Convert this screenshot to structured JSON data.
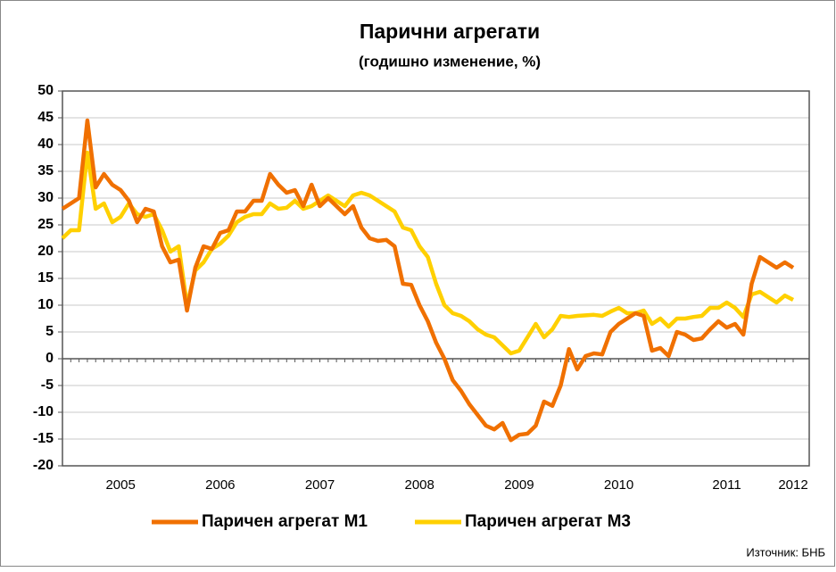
{
  "chart_data": {
    "type": "line",
    "title": "Парични агрегати",
    "subtitle": "(годишно изменение, %)",
    "source": "Източник: БНБ",
    "categories": [
      null,
      null,
      null,
      null,
      null,
      null,
      null,
      "2005",
      null,
      null,
      null,
      null,
      null,
      null,
      null,
      null,
      null,
      null,
      null,
      "2006",
      null,
      null,
      null,
      null,
      null,
      null,
      null,
      null,
      null,
      null,
      null,
      "2007",
      null,
      null,
      null,
      null,
      null,
      null,
      null,
      null,
      null,
      null,
      null,
      "2008",
      null,
      null,
      null,
      null,
      null,
      null,
      null,
      null,
      null,
      null,
      null,
      "2009",
      null,
      null,
      null,
      null,
      null,
      null,
      null,
      null,
      null,
      null,
      null,
      "2010",
      null,
      null,
      null,
      null,
      null,
      null,
      null,
      null,
      null,
      null,
      null,
      null,
      "2011",
      null,
      null,
      null,
      null,
      null,
      null,
      null,
      "2012"
    ],
    "series": [
      {
        "name": "Паричен агрегат М1",
        "color": "#f07000",
        "values": [
          28,
          29,
          30,
          44.5,
          32,
          34.5,
          32.5,
          31.5,
          29.5,
          25.5,
          28,
          27.5,
          21,
          18,
          18.5,
          9,
          17,
          21,
          20.5,
          23.5,
          24,
          27.5,
          27.5,
          29.5,
          29.5,
          34.5,
          32.5,
          31,
          31.5,
          28.5,
          32.5,
          28.5,
          30,
          28.5,
          27,
          28.5,
          24.5,
          22.5,
          22,
          22.2,
          21,
          14,
          13.8,
          10,
          7,
          3,
          0,
          -4,
          -6,
          -8.5,
          -10.5,
          -12.5,
          -13.2,
          -12,
          -15.2,
          -14.2,
          -14,
          -12.5,
          -8,
          -8.8,
          -5,
          1.8,
          -2,
          0.5,
          1,
          0.8,
          5,
          6.5,
          7.5,
          8.5,
          8,
          1.5,
          2,
          0.5,
          5,
          4.5,
          3.5,
          3.8,
          5.5,
          7,
          5.8,
          6.5,
          4.5,
          14,
          19,
          18,
          17,
          18,
          17
        ]
      },
      {
        "name": "Паричен агрегат М3",
        "color": "#ffd000",
        "values": [
          22.5,
          24,
          24,
          38.5,
          28,
          29,
          25.5,
          26.5,
          29,
          27,
          26.5,
          27,
          24,
          20,
          21,
          10,
          16.5,
          18,
          20.5,
          21.5,
          23,
          25.5,
          26.5,
          27,
          27,
          29,
          28,
          28.2,
          29.5,
          28,
          28.5,
          29.5,
          30.5,
          29.5,
          28.5,
          30.5,
          31,
          30.5,
          29.5,
          28.5,
          27.5,
          24.5,
          24,
          21,
          19,
          14,
          10,
          8.5,
          8,
          7,
          5.5,
          4.5,
          4,
          2.5,
          1,
          1.5,
          4,
          6.5,
          4,
          5.5,
          8,
          7.8,
          8,
          8.1,
          8.2,
          8,
          8.8,
          9.5,
          8.5,
          8.5,
          9,
          6.5,
          7.5,
          6,
          7.5,
          7.5,
          7.8,
          8,
          9.5,
          9.5,
          10.5,
          9.5,
          7.8,
          12,
          12.5,
          11.5,
          10.5,
          11.8,
          11
        ]
      }
    ],
    "ylim": [
      -20,
      50
    ],
    "yticks": [
      -20,
      -15,
      -10,
      -5,
      0,
      5,
      10,
      15,
      20,
      25,
      30,
      35,
      40,
      45,
      50
    ],
    "grid": true,
    "legend": "bottom"
  }
}
